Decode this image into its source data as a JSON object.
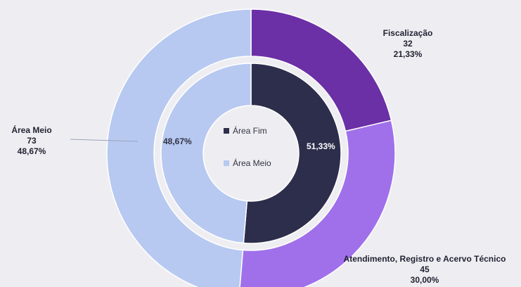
{
  "chart_data": {
    "type": "donut",
    "outer_ring": [
      {
        "name": "Fiscalização",
        "value": 32,
        "percent": "21,33%",
        "color": "#6b2fa6"
      },
      {
        "name": "Atendimento, Registro e Acervo Técnico",
        "value": 45,
        "percent": "30,00%",
        "color": "#a070ea"
      },
      {
        "name": "Área Meio",
        "value": 73,
        "percent": "48,67%",
        "color": "#b7c9f1"
      }
    ],
    "inner_ring": [
      {
        "name": "Área Fim",
        "value": 77,
        "percent": "51,33%",
        "color": "#2d2e4c",
        "label_color": "#ffffff"
      },
      {
        "name": "Área Meio",
        "value": 73,
        "percent": "48,67%",
        "color": "#b7c9f1",
        "label_color": "#333344"
      }
    ],
    "legend": [
      {
        "label": "Área Fim",
        "color": "#2d2e4c"
      },
      {
        "label": "Área Meio",
        "color": "#b7c9f1"
      }
    ],
    "legend_position": "center"
  }
}
